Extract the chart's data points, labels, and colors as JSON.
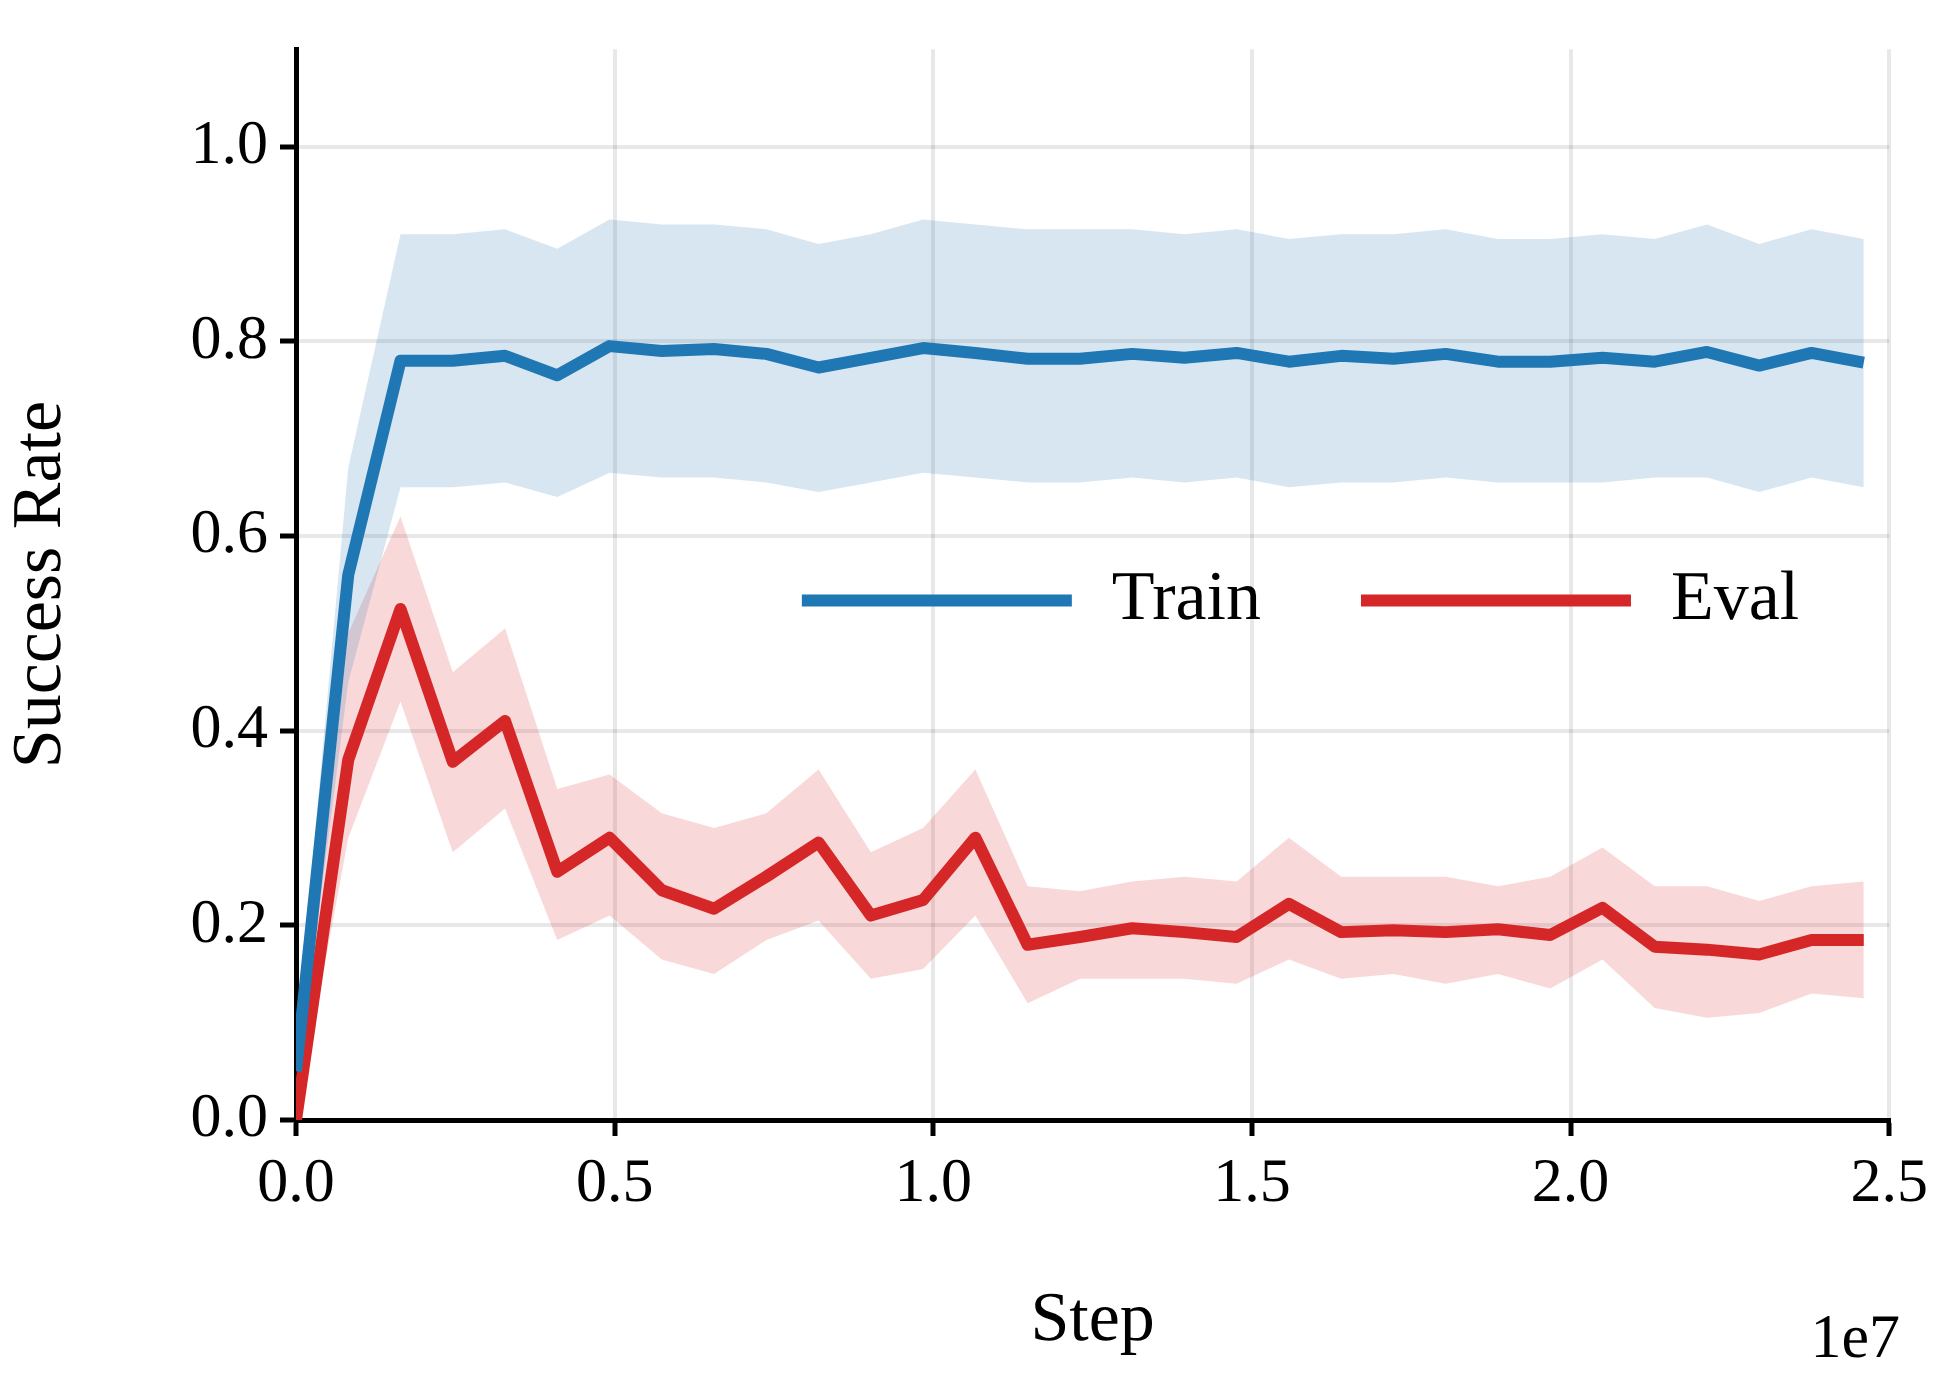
{
  "chart_data": {
    "type": "line",
    "xlabel": "Step",
    "ylabel": "Success Rate",
    "annotations": [
      "1e7"
    ],
    "x": [
      0,
      0.082,
      0.164,
      0.246,
      0.328,
      0.41,
      0.492,
      0.574,
      0.656,
      0.738,
      0.82,
      0.902,
      0.984,
      1.066,
      1.148,
      1.23,
      1.312,
      1.394,
      1.476,
      1.558,
      1.64,
      1.722,
      1.804,
      1.886,
      1.968,
      2.05,
      2.132,
      2.214,
      2.296,
      2.378,
      2.46
    ],
    "series": [
      {
        "name": "Train",
        "color": "#1f77b4",
        "values": [
          0.05,
          0.56,
          0.78,
          0.78,
          0.785,
          0.765,
          0.795,
          0.79,
          0.792,
          0.787,
          0.773,
          0.783,
          0.793,
          0.788,
          0.782,
          0.782,
          0.787,
          0.783,
          0.788,
          0.779,
          0.785,
          0.782,
          0.787,
          0.779,
          0.779,
          0.783,
          0.779,
          0.789,
          0.775,
          0.788,
          0.778
        ],
        "lower": [
          0.03,
          0.45,
          0.65,
          0.65,
          0.655,
          0.64,
          0.665,
          0.66,
          0.66,
          0.655,
          0.645,
          0.655,
          0.665,
          0.66,
          0.655,
          0.655,
          0.66,
          0.655,
          0.66,
          0.65,
          0.655,
          0.655,
          0.66,
          0.655,
          0.655,
          0.655,
          0.66,
          0.66,
          0.645,
          0.66,
          0.65
        ],
        "upper": [
          0.08,
          0.67,
          0.91,
          0.91,
          0.915,
          0.895,
          0.925,
          0.92,
          0.92,
          0.915,
          0.9,
          0.91,
          0.925,
          0.92,
          0.915,
          0.915,
          0.915,
          0.91,
          0.915,
          0.905,
          0.91,
          0.91,
          0.915,
          0.905,
          0.905,
          0.91,
          0.905,
          0.92,
          0.9,
          0.915,
          0.905
        ]
      },
      {
        "name": "Eval",
        "color": "#d62728",
        "values": [
          0,
          0.37,
          0.525,
          0.368,
          0.41,
          0.255,
          0.29,
          0.236,
          0.217,
          0.25,
          0.285,
          0.21,
          0.226,
          0.29,
          0.18,
          0.188,
          0.197,
          0.193,
          0.188,
          0.222,
          0.193,
          0.195,
          0.193,
          0.196,
          0.19,
          0.218,
          0.178,
          0.175,
          0.17,
          0.185,
          0.185
        ],
        "lower": [
          0,
          0.29,
          0.43,
          0.275,
          0.32,
          0.185,
          0.21,
          0.165,
          0.15,
          0.185,
          0.205,
          0.145,
          0.155,
          0.21,
          0.12,
          0.145,
          0.145,
          0.145,
          0.14,
          0.165,
          0.145,
          0.15,
          0.14,
          0.15,
          0.135,
          0.165,
          0.115,
          0.105,
          0.11,
          0.13,
          0.125
        ],
        "upper": [
          0,
          0.5,
          0.62,
          0.46,
          0.505,
          0.34,
          0.355,
          0.315,
          0.3,
          0.315,
          0.36,
          0.275,
          0.3,
          0.36,
          0.24,
          0.235,
          0.245,
          0.25,
          0.245,
          0.29,
          0.25,
          0.25,
          0.25,
          0.24,
          0.25,
          0.28,
          0.24,
          0.24,
          0.225,
          0.24,
          0.245
        ]
      }
    ],
    "xlim": [
      0,
      2.5
    ],
    "xticks": [
      {
        "value": 0,
        "label": "0.0"
      },
      {
        "value": 0.5,
        "label": "0.5"
      },
      {
        "value": 1,
        "label": "1.0"
      },
      {
        "value": 1.5,
        "label": "1.5"
      },
      {
        "value": 2,
        "label": "2.0"
      },
      {
        "value": 2.5,
        "label": "2.5"
      }
    ],
    "ylim": [
      0,
      1.1
    ],
    "yticks": [
      {
        "value": 0,
        "label": "0.0"
      },
      {
        "value": 0.2,
        "label": "0.2"
      },
      {
        "value": 0.4,
        "label": "0.4"
      },
      {
        "value": 0.6,
        "label": "0.6"
      },
      {
        "value": 0.8,
        "label": "0.8"
      },
      {
        "value": 1,
        "label": "1.0"
      }
    ],
    "grid": true,
    "legend": "center right",
    "marker": "none",
    "line_style": "solid"
  }
}
